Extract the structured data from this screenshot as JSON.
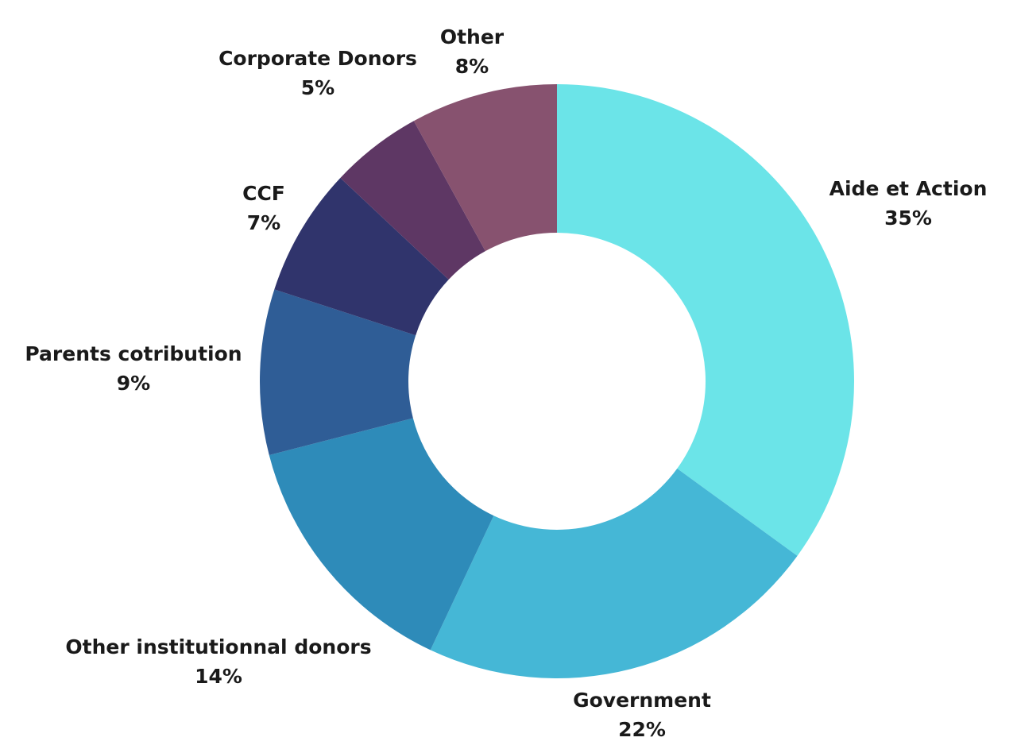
{
  "chart_data": {
    "type": "pie",
    "donut": true,
    "title": "",
    "start": "top",
    "direction": "clockwise",
    "slices": [
      {
        "label": "Aide et Action",
        "value": 35,
        "display": "35%",
        "color": "#6be4e8"
      },
      {
        "label": "Government",
        "value": 22,
        "display": "22%",
        "color": "#45b7d6"
      },
      {
        "label": "Other institutionnal donors",
        "value": 14,
        "display": "14%",
        "color": "#2e8bb9"
      },
      {
        "label": "Parents cotribution",
        "value": 9,
        "display": "9%",
        "color": "#2f5d96"
      },
      {
        "label": "CCF",
        "value": 7,
        "display": "7%",
        "color": "#30346c"
      },
      {
        "label": "Corporate Donors",
        "value": 5,
        "display": "5%",
        "color": "#5e3764"
      },
      {
        "label": "Other",
        "value": 8,
        "display": "8%",
        "color": "#87526f"
      }
    ]
  }
}
